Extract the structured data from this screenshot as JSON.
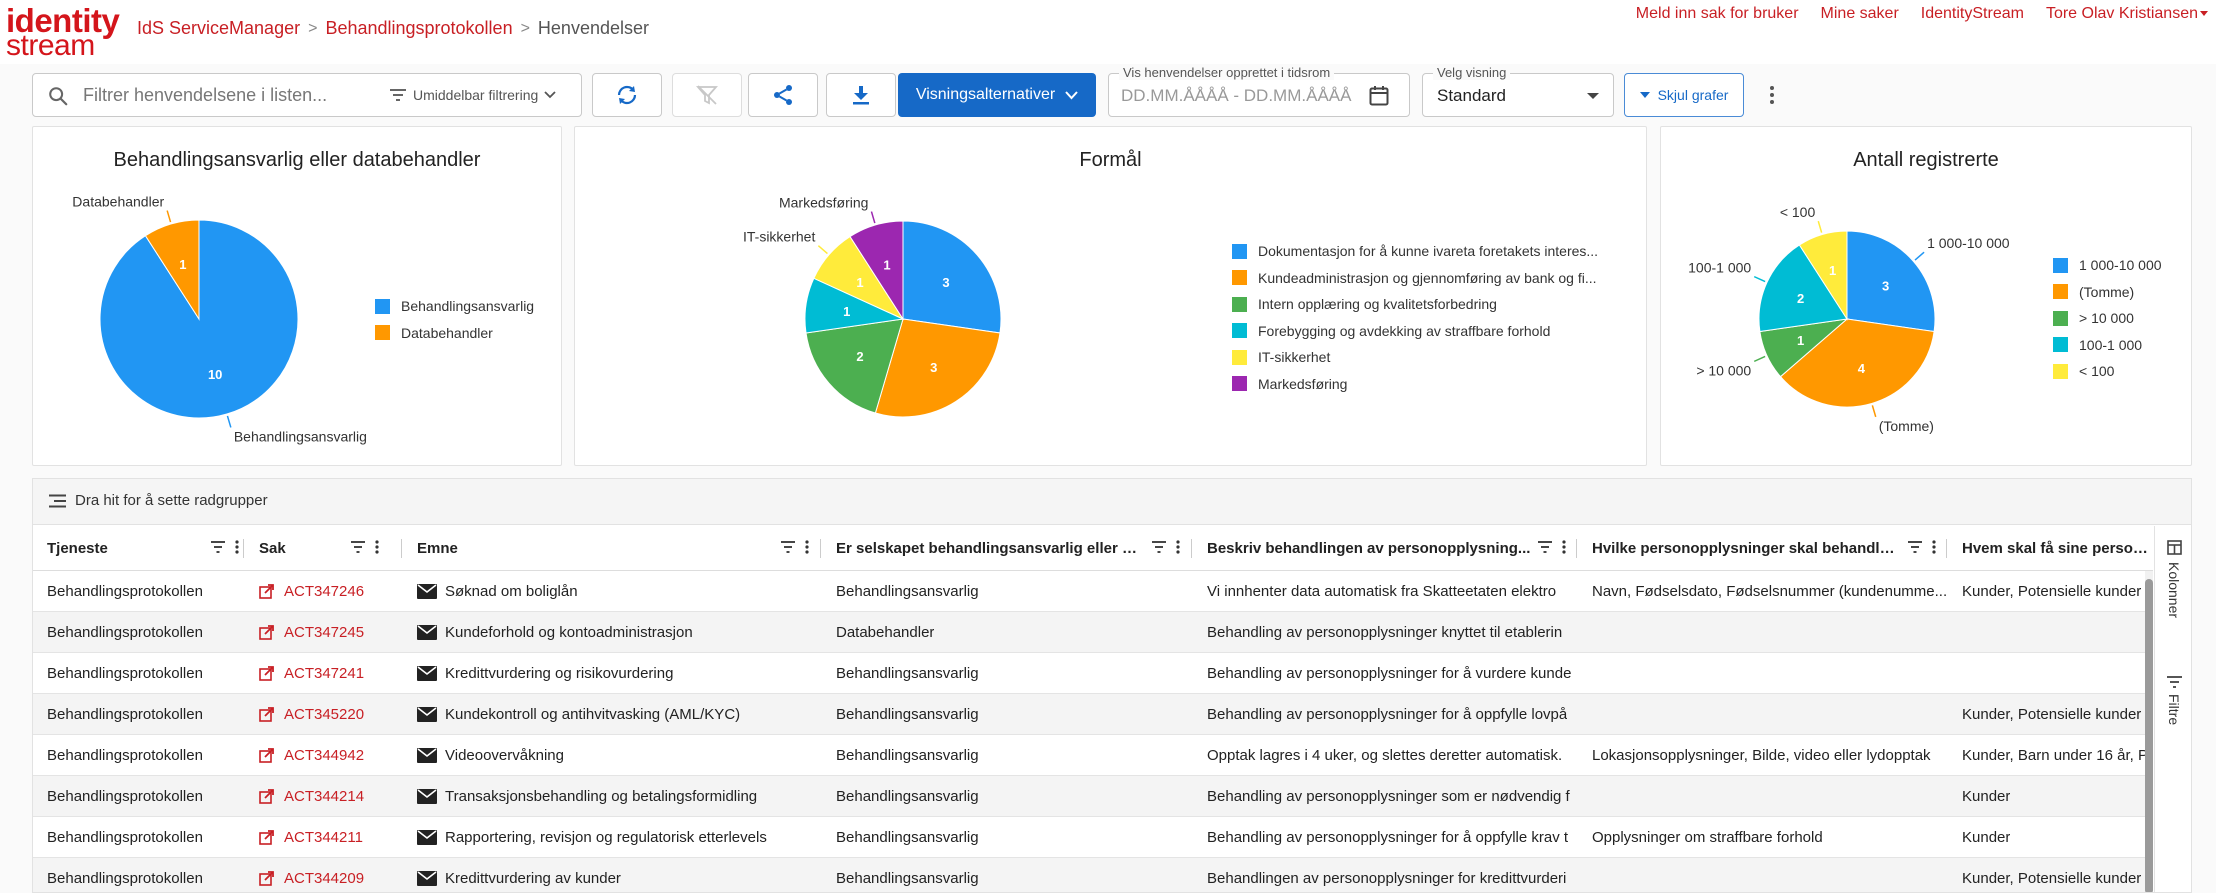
{
  "header": {
    "logo_line1": "identity",
    "logo_line2": "stream",
    "breadcrumb": [
      "IdS ServiceManager",
      "Behandlingsprotokollen",
      "Henvendelser"
    ],
    "links": [
      "Meld inn sak for bruker",
      "Mine saker",
      "IdentityStream",
      "Tore Olav Kristiansen"
    ]
  },
  "toolbar": {
    "search_placeholder": "Filtrer henvendelsene i listen...",
    "filter_mode": "Umiddelbar filtrering",
    "view_options_label": "Visningsalternativer",
    "date_range_label": "Vis henvendelser opprettet i tidsrom",
    "date_range_placeholder": "DD.MM.ÅÅÅÅ - DD.MM.ÅÅÅÅ",
    "view_select_label": "Velg visning",
    "view_select_value": "Standard",
    "hide_charts_label": "Skjul grafer"
  },
  "charts": {
    "colors": {
      "blue": "#2196f3",
      "orange": "#ff9800",
      "green": "#4caf50",
      "cyan": "#00bcd4",
      "yellow": "#ffeb3b",
      "purple": "#9c27b0"
    }
  },
  "chart_data": [
    {
      "type": "pie",
      "title": "Behandlingsansvarlig eller databehandler",
      "categories": [
        "Behandlingsansvarlig",
        "Databehandler"
      ],
      "values": [
        10,
        1
      ],
      "colors": [
        "#2196f3",
        "#ff9800"
      ],
      "legend_position": "right"
    },
    {
      "type": "pie",
      "title": "Formål",
      "categories": [
        "Dokumentasjon for å kunne ivareta foretakets interes...",
        "Kundeadministrasjon og gjennomføring av bank og fi...",
        "Intern opplæring og kvalitetsforbedring",
        "Forebygging og avdekking av straffbare forhold",
        "IT-sikkerhet",
        "Markedsføring"
      ],
      "values": [
        3,
        3,
        2,
        1,
        1,
        1
      ],
      "slice_labels": [
        "",
        "",
        "",
        "",
        "IT-sikkerhet",
        "Markedsføring"
      ],
      "colors": [
        "#2196f3",
        "#ff9800",
        "#4caf50",
        "#00bcd4",
        "#ffeb3b",
        "#9c27b0"
      ],
      "legend_position": "right"
    },
    {
      "type": "pie",
      "title": "Antall registrerte",
      "categories": [
        "1 000-10 000",
        "(Tomme)",
        "> 10 000",
        "100-1 000",
        "< 100"
      ],
      "values": [
        3,
        4,
        1,
        2,
        1
      ],
      "colors": [
        "#2196f3",
        "#ff9800",
        "#4caf50",
        "#00bcd4",
        "#ffeb3b"
      ],
      "legend_position": "right"
    }
  ],
  "grid": {
    "group_hint": "Dra hit for å sette radgrupper",
    "columns": [
      "Tjeneste",
      "Sak",
      "Emne",
      "Er selskapet behandlingsansvarlig eller dat...",
      "Beskriv behandlingen av personopplysning...",
      "Hvilke personopplysninger skal behandles?",
      "Hvem skal få sine personopp"
    ],
    "rows": [
      [
        "Behandlingsprotokollen",
        "ACT347246",
        "Søknad om boliglån",
        "Behandlingsansvarlig",
        "Vi innhenter data automatisk fra Skatteetaten elektro",
        "Navn, Fødselsdato, Fødselsnummer (kundenumme...",
        "Kunder, Potensielle kunder"
      ],
      [
        "Behandlingsprotokollen",
        "ACT347245",
        "Kundeforhold og kontoadministrasjon",
        "Databehandler",
        "Behandling av personopplysninger knyttet til etablerin",
        "",
        ""
      ],
      [
        "Behandlingsprotokollen",
        "ACT347241",
        "Kredittvurdering og risikovurdering",
        "Behandlingsansvarlig",
        "Behandling av personopplysninger for å vurdere kunde",
        "",
        ""
      ],
      [
        "Behandlingsprotokollen",
        "ACT345220",
        "Kundekontroll og antihvitvasking (AML/KYC)",
        "Behandlingsansvarlig",
        "Behandling av personopplysninger for å oppfylle lovpå",
        "",
        "Kunder, Potensielle kunder"
      ],
      [
        "Behandlingsprotokollen",
        "ACT344942",
        "Videoovervåkning",
        "Behandlingsansvarlig",
        "Opptak lagres i 4 uker, og slettes deretter automatisk.",
        "Lokasjonsopplysninger, Bilde, video eller lydopptak",
        "Kunder, Barn under 16 år, P"
      ],
      [
        "Behandlingsprotokollen",
        "ACT344214",
        "Transaksjonsbehandling og betalingsformidling",
        "Behandlingsansvarlig",
        "Behandling av personopplysninger som er nødvendig f",
        "",
        "Kunder"
      ],
      [
        "Behandlingsprotokollen",
        "ACT344211",
        "Rapportering, revisjon og regulatorisk etterlevels",
        "Behandlingsansvarlig",
        "Behandling av personopplysninger for å oppfylle krav t",
        "Opplysninger om straffbare forhold",
        "Kunder"
      ],
      [
        "Behandlingsprotokollen",
        "ACT344209",
        "Kredittvurdering av kunder",
        "Behandlingsansvarlig",
        "Behandlingen av personopplysninger for kredittvurderi",
        "",
        "Kunder, Potensielle kunder"
      ]
    ],
    "side_tabs": [
      "Kolonner",
      "Filtre"
    ]
  }
}
